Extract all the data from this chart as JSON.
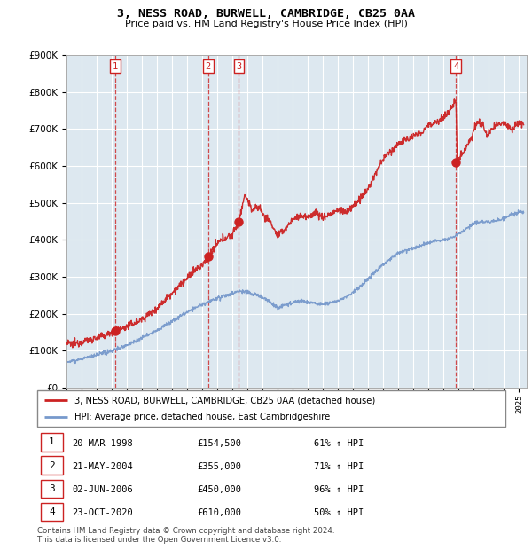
{
  "title": "3, NESS ROAD, BURWELL, CAMBRIDGE, CB25 0AA",
  "subtitle": "Price paid vs. HM Land Registry's House Price Index (HPI)",
  "ylim": [
    0,
    900000
  ],
  "yticks": [
    0,
    100000,
    200000,
    300000,
    400000,
    500000,
    600000,
    700000,
    800000,
    900000
  ],
  "xlim_start": 1995.0,
  "xlim_end": 2025.5,
  "sale_dates": [
    1998.22,
    2004.39,
    2006.42,
    2020.81
  ],
  "sale_prices": [
    154500,
    355000,
    450000,
    610000
  ],
  "sale_labels": [
    "1",
    "2",
    "3",
    "4"
  ],
  "red_color": "#cc2222",
  "blue_color": "#7799cc",
  "bg_color": "#dde8f0",
  "legend_entries": [
    "3, NESS ROAD, BURWELL, CAMBRIDGE, CB25 0AA (detached house)",
    "HPI: Average price, detached house, East Cambridgeshire"
  ],
  "table_data": [
    [
      "1",
      "20-MAR-1998",
      "£154,500",
      "61% ↑ HPI"
    ],
    [
      "2",
      "21-MAY-2004",
      "£355,000",
      "71% ↑ HPI"
    ],
    [
      "3",
      "02-JUN-2006",
      "£450,000",
      "96% ↑ HPI"
    ],
    [
      "4",
      "23-OCT-2020",
      "£610,000",
      "50% ↑ HPI"
    ]
  ],
  "footer": "Contains HM Land Registry data © Crown copyright and database right 2024.\nThis data is licensed under the Open Government Licence v3.0."
}
